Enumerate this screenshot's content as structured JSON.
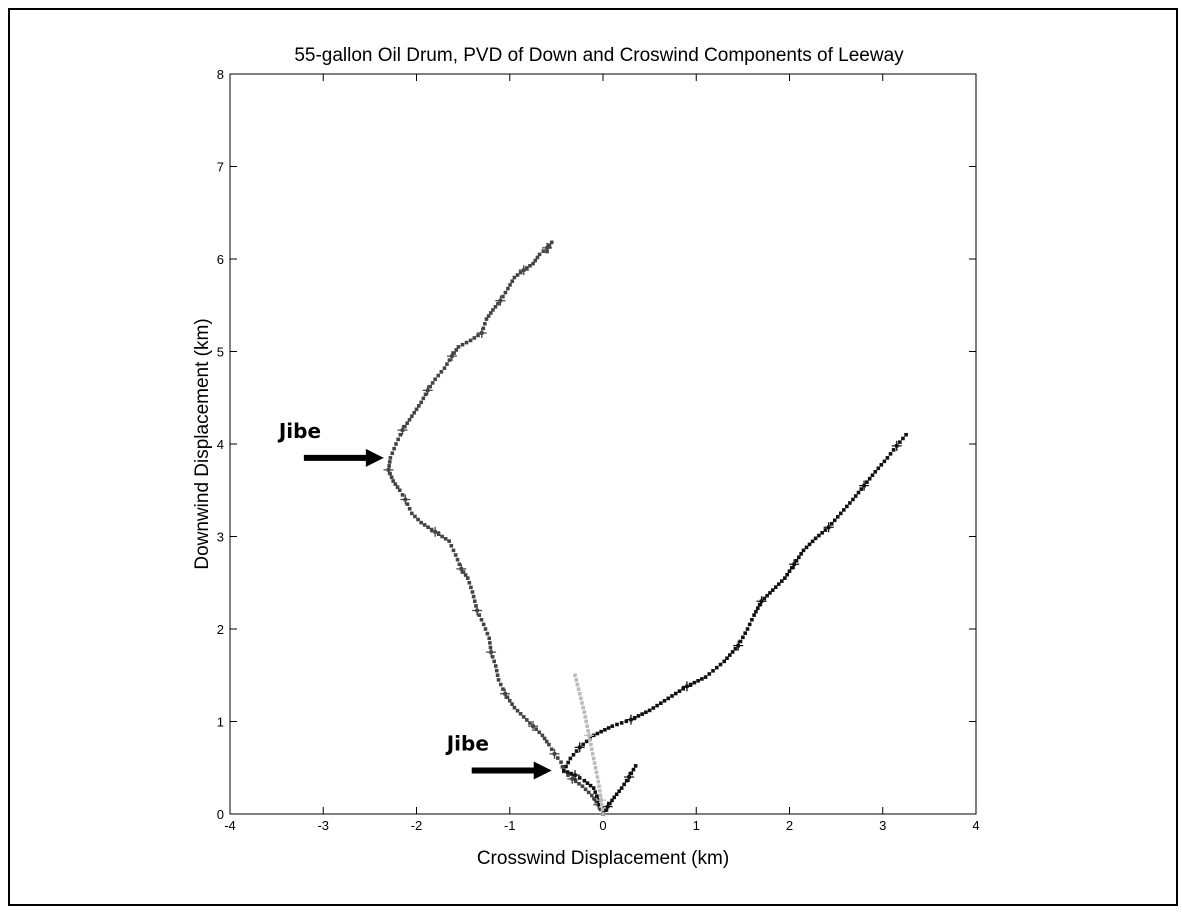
{
  "chart_data": {
    "type": "scatter",
    "title": "55-gallon Oil Drum, PVD of Down and Croswind Components of Leeway",
    "xlabel": "Crosswind Displacement (km)",
    "ylabel": "Downwind Displacement (km)",
    "xlim": [
      -4,
      4
    ],
    "ylim": [
      0,
      8
    ],
    "xticks": [
      "-4",
      "-3",
      "-2",
      "-1",
      "0",
      "1",
      "2",
      "3",
      "4"
    ],
    "yticks": [
      "0",
      "1",
      "2",
      "3",
      "4",
      "5",
      "6",
      "7",
      "8"
    ],
    "grid": false,
    "series": [
      {
        "color": "#444444",
        "points": [
          [
            0,
            0
          ],
          [
            -0.05,
            0.1
          ],
          [
            -0.12,
            0.2
          ],
          [
            -0.22,
            0.3
          ],
          [
            -0.33,
            0.38
          ],
          [
            -0.42,
            0.46
          ],
          [
            -0.45,
            0.56
          ],
          [
            -0.52,
            0.65
          ],
          [
            -0.58,
            0.75
          ],
          [
            -0.65,
            0.85
          ],
          [
            -0.75,
            0.95
          ],
          [
            -0.85,
            1.05
          ],
          [
            -0.95,
            1.15
          ],
          [
            -1.05,
            1.3
          ],
          [
            -1.12,
            1.45
          ],
          [
            -1.15,
            1.6
          ],
          [
            -1.2,
            1.75
          ],
          [
            -1.22,
            1.9
          ],
          [
            -1.28,
            2.05
          ],
          [
            -1.35,
            2.2
          ],
          [
            -1.4,
            2.4
          ],
          [
            -1.45,
            2.55
          ],
          [
            -1.52,
            2.65
          ],
          [
            -1.58,
            2.8
          ],
          [
            -1.65,
            2.95
          ],
          [
            -1.8,
            3.05
          ],
          [
            -1.95,
            3.15
          ],
          [
            -2.05,
            3.25
          ],
          [
            -2.12,
            3.4
          ],
          [
            -2.18,
            3.5
          ],
          [
            -2.25,
            3.6
          ],
          [
            -2.3,
            3.72
          ],
          [
            -2.28,
            3.85
          ],
          [
            -2.22,
            4.0
          ],
          [
            -2.15,
            4.15
          ],
          [
            -2.05,
            4.3
          ],
          [
            -1.95,
            4.45
          ],
          [
            -1.88,
            4.58
          ],
          [
            -1.8,
            4.7
          ],
          [
            -1.7,
            4.82
          ],
          [
            -1.62,
            4.95
          ],
          [
            -1.55,
            5.05
          ],
          [
            -1.42,
            5.12
          ],
          [
            -1.3,
            5.2
          ],
          [
            -1.25,
            5.35
          ],
          [
            -1.18,
            5.45
          ],
          [
            -1.1,
            5.55
          ],
          [
            -1.02,
            5.68
          ],
          [
            -0.95,
            5.8
          ],
          [
            -0.85,
            5.88
          ],
          [
            -0.75,
            5.95
          ],
          [
            -0.68,
            6.05
          ],
          [
            -0.6,
            6.12
          ],
          [
            -0.55,
            6.18
          ],
          [
            -0.6,
            6.08
          ]
        ]
      },
      {
        "color": "#111111",
        "points": [
          [
            0,
            0
          ],
          [
            -0.05,
            0.15
          ],
          [
            -0.1,
            0.28
          ],
          [
            -0.2,
            0.36
          ],
          [
            -0.3,
            0.42
          ],
          [
            -0.42,
            0.47
          ],
          [
            -0.35,
            0.6
          ],
          [
            -0.25,
            0.72
          ],
          [
            -0.1,
            0.85
          ],
          [
            0.1,
            0.95
          ],
          [
            0.3,
            1.02
          ],
          [
            0.5,
            1.12
          ],
          [
            0.7,
            1.25
          ],
          [
            0.9,
            1.38
          ],
          [
            1.1,
            1.48
          ],
          [
            1.3,
            1.65
          ],
          [
            1.45,
            1.82
          ],
          [
            1.55,
            2.0
          ],
          [
            1.62,
            2.15
          ],
          [
            1.7,
            2.3
          ],
          [
            1.82,
            2.42
          ],
          [
            1.95,
            2.55
          ],
          [
            2.05,
            2.7
          ],
          [
            2.15,
            2.85
          ],
          [
            2.28,
            2.98
          ],
          [
            2.42,
            3.1
          ],
          [
            2.55,
            3.25
          ],
          [
            2.68,
            3.4
          ],
          [
            2.8,
            3.55
          ],
          [
            2.92,
            3.7
          ],
          [
            3.05,
            3.85
          ],
          [
            3.15,
            3.98
          ],
          [
            3.25,
            4.1
          ]
        ]
      },
      {
        "color": "#111111",
        "points": [
          [
            0,
            0
          ],
          [
            0.05,
            0.08
          ],
          [
            0.12,
            0.18
          ],
          [
            0.2,
            0.28
          ],
          [
            0.28,
            0.4
          ],
          [
            0.35,
            0.52
          ]
        ]
      },
      {
        "color": "#bbbbbb",
        "points": [
          [
            0,
            0
          ],
          [
            -0.02,
            0.15
          ],
          [
            -0.05,
            0.35
          ],
          [
            -0.1,
            0.6
          ],
          [
            -0.15,
            0.85
          ],
          [
            -0.2,
            1.1
          ],
          [
            -0.25,
            1.3
          ],
          [
            -0.3,
            1.5
          ]
        ]
      }
    ],
    "annotations": [
      {
        "text": "Jibe",
        "arrow_to": [
          -2.35,
          3.85
        ]
      },
      {
        "text": "Jibe",
        "arrow_to": [
          -0.55,
          0.47
        ]
      }
    ]
  }
}
